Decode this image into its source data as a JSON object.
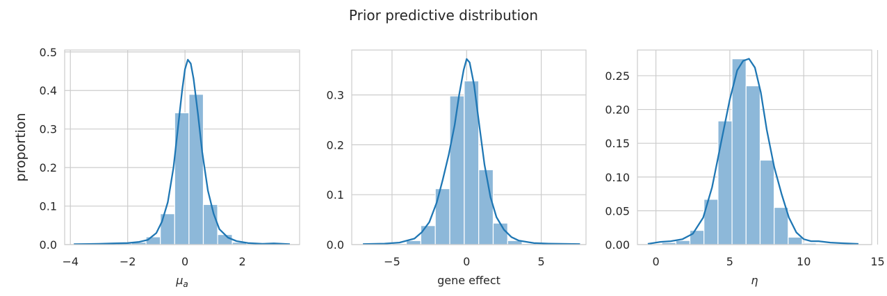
{
  "figure": {
    "title": "Prior predictive distribution"
  },
  "style": {
    "bar_color": "#8db8d9",
    "line_color": "#1f77b4",
    "grid_color": "#cccccc"
  },
  "chart_data": [
    {
      "type": "bar",
      "ylabel": "proportion",
      "xlabel_base": "μ",
      "xlabel_sub": "a",
      "xlabel_italic": true,
      "xlim": [
        -4.2,
        4.0
      ],
      "ylim": [
        0,
        0.505
      ],
      "xticks": [
        -4,
        -2,
        0,
        2
      ],
      "yticks": [
        0.0,
        0.1,
        0.2,
        0.3,
        0.4,
        0.5
      ],
      "ytick_labels": [
        "0.0",
        "0.1",
        "0.2",
        "0.3",
        "0.4",
        "0.5"
      ],
      "bins": [
        {
          "x0": -3.88,
          "x1": -3.37,
          "v": 0.001
        },
        {
          "x0": -3.37,
          "x1": -2.87,
          "v": 0.001
        },
        {
          "x0": -2.87,
          "x1": -2.37,
          "v": 0.002
        },
        {
          "x0": -2.37,
          "x1": -1.86,
          "v": 0.003
        },
        {
          "x0": -1.86,
          "x1": -1.36,
          "v": 0.006
        },
        {
          "x0": -1.36,
          "x1": -0.86,
          "v": 0.02
        },
        {
          "x0": -0.86,
          "x1": -0.36,
          "v": 0.08
        },
        {
          "x0": -0.36,
          "x1": 0.14,
          "v": 0.342
        },
        {
          "x0": 0.14,
          "x1": 0.64,
          "v": 0.39
        },
        {
          "x0": 0.64,
          "x1": 1.14,
          "v": 0.104
        },
        {
          "x0": 1.14,
          "x1": 1.65,
          "v": 0.026
        },
        {
          "x0": 1.65,
          "x1": 2.15,
          "v": 0.006
        },
        {
          "x0": 2.15,
          "x1": 2.65,
          "v": 0.002
        },
        {
          "x0": 2.65,
          "x1": 3.15,
          "v": 0.002
        },
        {
          "x0": 3.15,
          "x1": 3.66,
          "v": 0.002
        }
      ],
      "kde": [
        [
          -3.88,
          0.001
        ],
        [
          -3.0,
          0.002
        ],
        [
          -2.5,
          0.003
        ],
        [
          -2.0,
          0.004
        ],
        [
          -1.6,
          0.007
        ],
        [
          -1.3,
          0.012
        ],
        [
          -1.0,
          0.03
        ],
        [
          -0.8,
          0.06
        ],
        [
          -0.6,
          0.11
        ],
        [
          -0.4,
          0.2
        ],
        [
          -0.25,
          0.3
        ],
        [
          -0.1,
          0.4
        ],
        [
          0.0,
          0.455
        ],
        [
          0.1,
          0.48
        ],
        [
          0.2,
          0.47
        ],
        [
          0.3,
          0.43
        ],
        [
          0.45,
          0.34
        ],
        [
          0.6,
          0.24
        ],
        [
          0.8,
          0.14
        ],
        [
          1.0,
          0.08
        ],
        [
          1.2,
          0.04
        ],
        [
          1.5,
          0.018
        ],
        [
          1.8,
          0.009
        ],
        [
          2.2,
          0.004
        ],
        [
          2.7,
          0.002
        ],
        [
          3.1,
          0.003
        ],
        [
          3.66,
          0.001
        ]
      ]
    },
    {
      "type": "bar",
      "ylabel": "",
      "xlabel_base": "gene effect",
      "xlabel_sub": "",
      "xlabel_italic": false,
      "xlim": [
        -7.7,
        8.0
      ],
      "ylim": [
        0,
        0.39
      ],
      "xticks": [
        -5,
        0,
        5
      ],
      "yticks": [
        0.0,
        0.1,
        0.2,
        0.3
      ],
      "ytick_labels": [
        "0.0",
        "0.1",
        "0.2",
        "0.3"
      ],
      "bins": [
        {
          "x0": -6.95,
          "x1": -5.98,
          "v": 0.001
        },
        {
          "x0": -5.98,
          "x1": -5.01,
          "v": 0.001
        },
        {
          "x0": -5.01,
          "x1": -4.04,
          "v": 0.002
        },
        {
          "x0": -4.04,
          "x1": -3.07,
          "v": 0.008
        },
        {
          "x0": -3.07,
          "x1": -2.1,
          "v": 0.038
        },
        {
          "x0": -2.1,
          "x1": -1.13,
          "v": 0.112
        },
        {
          "x0": -1.13,
          "x1": -0.16,
          "v": 0.298
        },
        {
          "x0": -0.16,
          "x1": 0.81,
          "v": 0.328
        },
        {
          "x0": 0.81,
          "x1": 1.78,
          "v": 0.15
        },
        {
          "x0": 1.78,
          "x1": 2.75,
          "v": 0.043
        },
        {
          "x0": 2.75,
          "x1": 3.72,
          "v": 0.008
        },
        {
          "x0": 3.72,
          "x1": 4.69,
          "v": 0.002
        },
        {
          "x0": 4.69,
          "x1": 5.66,
          "v": 0.001
        },
        {
          "x0": 5.66,
          "x1": 6.63,
          "v": 0.001
        },
        {
          "x0": 6.63,
          "x1": 7.6,
          "v": 0.001
        }
      ],
      "kde": [
        [
          -6.95,
          0.001
        ],
        [
          -5.5,
          0.002
        ],
        [
          -4.5,
          0.004
        ],
        [
          -3.5,
          0.012
        ],
        [
          -3.0,
          0.025
        ],
        [
          -2.5,
          0.045
        ],
        [
          -2.0,
          0.085
        ],
        [
          -1.6,
          0.13
        ],
        [
          -1.2,
          0.18
        ],
        [
          -0.8,
          0.24
        ],
        [
          -0.5,
          0.3
        ],
        [
          -0.2,
          0.35
        ],
        [
          0.0,
          0.372
        ],
        [
          0.2,
          0.365
        ],
        [
          0.5,
          0.32
        ],
        [
          0.8,
          0.25
        ],
        [
          1.2,
          0.16
        ],
        [
          1.6,
          0.095
        ],
        [
          2.0,
          0.055
        ],
        [
          2.5,
          0.03
        ],
        [
          3.0,
          0.015
        ],
        [
          3.5,
          0.008
        ],
        [
          4.5,
          0.003
        ],
        [
          5.5,
          0.002
        ],
        [
          7.6,
          0.001
        ]
      ]
    },
    {
      "type": "bar",
      "ylabel": "",
      "xlabel_base": "η",
      "xlabel_sub": "",
      "xlabel_italic": true,
      "xlim": [
        -1.25,
        14.6
      ],
      "ylim": [
        0,
        0.288
      ],
      "xticks": [
        0,
        5,
        10,
        15
      ],
      "yticks": [
        0.0,
        0.05,
        0.1,
        0.15,
        0.2,
        0.25
      ],
      "ytick_labels": [
        "0.00",
        "0.05",
        "0.10",
        "0.15",
        "0.20",
        "0.25"
      ],
      "bins": [
        {
          "x0": -0.55,
          "x1": 0.4,
          "v": 0.001
        },
        {
          "x0": 0.4,
          "x1": 1.35,
          "v": 0.003
        },
        {
          "x0": 1.35,
          "x1": 2.3,
          "v": 0.006
        },
        {
          "x0": 2.3,
          "x1": 3.25,
          "v": 0.021
        },
        {
          "x0": 3.25,
          "x1": 4.2,
          "v": 0.067
        },
        {
          "x0": 4.2,
          "x1": 5.15,
          "v": 0.183
        },
        {
          "x0": 5.15,
          "x1": 6.1,
          "v": 0.275
        },
        {
          "x0": 6.1,
          "x1": 7.05,
          "v": 0.235
        },
        {
          "x0": 7.05,
          "x1": 8.0,
          "v": 0.125
        },
        {
          "x0": 8.0,
          "x1": 8.95,
          "v": 0.055
        },
        {
          "x0": 8.95,
          "x1": 9.9,
          "v": 0.011
        },
        {
          "x0": 9.9,
          "x1": 10.85,
          "v": 0.002
        },
        {
          "x0": 10.85,
          "x1": 11.8,
          "v": 0.001
        },
        {
          "x0": 11.8,
          "x1": 12.75,
          "v": 0.001
        },
        {
          "x0": 12.75,
          "x1": 13.7,
          "v": 0.001
        }
      ],
      "kde": [
        [
          -0.55,
          0.001
        ],
        [
          0.3,
          0.004
        ],
        [
          1.0,
          0.005
        ],
        [
          1.8,
          0.008
        ],
        [
          2.5,
          0.016
        ],
        [
          3.2,
          0.04
        ],
        [
          3.8,
          0.085
        ],
        [
          4.4,
          0.15
        ],
        [
          5.0,
          0.215
        ],
        [
          5.5,
          0.258
        ],
        [
          5.9,
          0.272
        ],
        [
          6.3,
          0.275
        ],
        [
          6.7,
          0.262
        ],
        [
          7.1,
          0.225
        ],
        [
          7.5,
          0.17
        ],
        [
          8.0,
          0.115
        ],
        [
          8.5,
          0.075
        ],
        [
          9.0,
          0.04
        ],
        [
          9.5,
          0.018
        ],
        [
          10.0,
          0.008
        ],
        [
          10.5,
          0.005
        ],
        [
          11.0,
          0.005
        ],
        [
          11.8,
          0.003
        ],
        [
          12.7,
          0.002
        ],
        [
          13.7,
          0.001
        ]
      ]
    }
  ]
}
